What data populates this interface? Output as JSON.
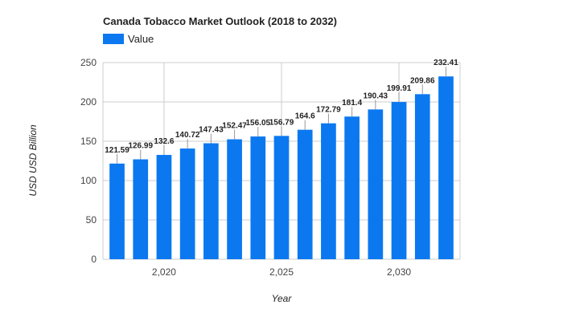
{
  "chart_data": {
    "type": "bar",
    "title": "Canada Tobacco Market Outlook (2018 to 2032)",
    "xlabel": "Year",
    "ylabel": "USD USD Billion",
    "legend": {
      "position": "top-left",
      "entries": [
        "Value"
      ]
    },
    "series": [
      {
        "name": "Value",
        "color": "#0b78f0",
        "x": [
          2018,
          2019,
          2020,
          2021,
          2022,
          2023,
          2024,
          2025,
          2026,
          2027,
          2028,
          2029,
          2030,
          2031,
          2032
        ],
        "values": [
          121.59,
          126.99,
          132.6,
          140.72,
          147.43,
          152.47,
          156.05,
          156.79,
          164.6,
          172.79,
          181.4,
          190.43,
          199.91,
          209.86,
          232.41
        ],
        "labels": [
          "121.59",
          "126.99",
          "132.6",
          "140.72",
          "147.43",
          "152.47",
          "156.05",
          "156.79",
          "164.6",
          "172.79",
          "181.4",
          "190.43",
          "199.91",
          "209.86",
          "232.41"
        ]
      }
    ],
    "ylim": [
      0,
      250
    ],
    "yticks": [
      0,
      50,
      100,
      150,
      200,
      250
    ],
    "xlim": [
      2017.4,
      2032.6
    ],
    "xticks": [
      2020,
      2025,
      2030
    ],
    "xtick_labels": [
      "2,020",
      "2,025",
      "2,030"
    ],
    "grid": true
  }
}
